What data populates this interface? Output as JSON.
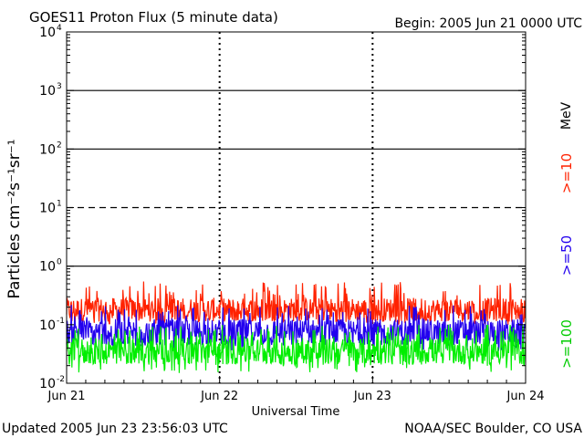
{
  "chart_data": {
    "type": "line",
    "title": "GOES11 Proton Flux (5 minute data)",
    "begin": "Begin: 2005 Jun 21 0000 UTC",
    "xlabel": "Universal Time",
    "ylabel": "Particles cm⁻²s⁻¹sr⁻¹",
    "x_ticks": [
      "Jun 21",
      "Jun 22",
      "Jun 23",
      "Jun 24"
    ],
    "xlim_days": [
      0,
      3
    ],
    "y_scale": "log",
    "ylim": [
      0.01,
      10000
    ],
    "y_ticks": [
      {
        "base": "10",
        "exp": "-2"
      },
      {
        "base": "10",
        "exp": "-1"
      },
      {
        "base": "10",
        "exp": "0"
      },
      {
        "base": "10",
        "exp": "1"
      },
      {
        "base": "10",
        "exp": "2"
      },
      {
        "base": "10",
        "exp": "3"
      },
      {
        "base": "10",
        "exp": "4"
      }
    ],
    "threshold_lines": [
      {
        "value": 1,
        "style": "solid"
      },
      {
        "value": 10,
        "style": "dashed"
      },
      {
        "value": 100,
        "style": "solid"
      },
      {
        "value": 1000,
        "style": "solid"
      }
    ],
    "unit_label": "MeV",
    "series": [
      {
        "name": ">=10",
        "color": "#ff2200",
        "typical": 0.18,
        "min": 0.1,
        "max": 0.55
      },
      {
        "name": ">=50",
        "color": "#2200ee",
        "typical": 0.075,
        "min": 0.035,
        "max": 0.22
      },
      {
        "name": ">=100",
        "color": "#00ee00",
        "typical": 0.035,
        "min": 0.015,
        "max": 0.1
      }
    ]
  },
  "footer": {
    "updated": "Updated 2005 Jun 23 23:56:03 UTC",
    "source": "NOAA/SEC Boulder, CO USA"
  }
}
